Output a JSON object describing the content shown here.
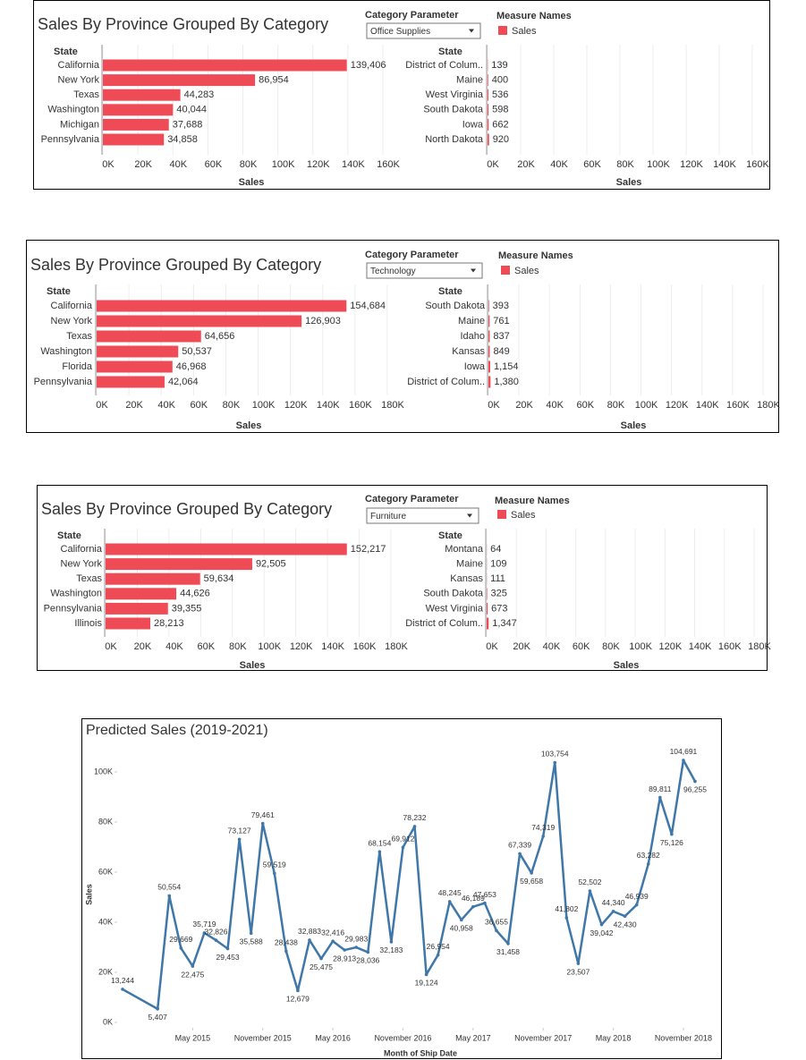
{
  "chart_data": [
    {
      "type": "bar",
      "orientation": "horizontal",
      "title": "Sales By Province Grouped By Category",
      "parameter_label": "Category Parameter",
      "parameter_value": "Office Supplies",
      "legend_title": "Measure Names",
      "category_label": "State",
      "xlabel": "Sales",
      "grid": true,
      "categories": [
        "California",
        "New York",
        "Texas",
        "Washington",
        "Michigan",
        "Pennsylvania"
      ],
      "series": [
        {
          "name": "Sales",
          "color": "#ef4b57",
          "values": [
            139406,
            86954,
            44283,
            40044,
            37688,
            34858
          ],
          "value_labels": [
            "139,406",
            "86,954",
            "44,283",
            "40,044",
            "37,688",
            "34,858"
          ]
        }
      ],
      "xlim": [
        0,
        160000
      ],
      "xticks": [
        {
          "value": 0,
          "label": "0K"
        },
        {
          "value": 20000,
          "label": "20K"
        },
        {
          "value": 40000,
          "label": "40K"
        },
        {
          "value": 60000,
          "label": "60K"
        },
        {
          "value": 80000,
          "label": "80K"
        },
        {
          "value": 100000,
          "label": "100K"
        },
        {
          "value": 120000,
          "label": "120K"
        },
        {
          "value": 140000,
          "label": "140K"
        },
        {
          "value": 160000,
          "label": "160K"
        }
      ]
    },
    {
      "type": "bar",
      "orientation": "horizontal",
      "category_label": "State",
      "xlabel": "Sales",
      "grid": true,
      "categories": [
        "District of Colum..",
        "Maine",
        "West Virginia",
        "South Dakota",
        "Iowa",
        "North Dakota"
      ],
      "series": [
        {
          "color": "#ef4b57",
          "values": [
            139,
            400,
            536,
            598,
            662,
            920
          ],
          "value_labels": [
            "139",
            "400",
            "536",
            "598",
            "662",
            "920"
          ]
        }
      ],
      "xlim": [
        0,
        160000
      ],
      "xticks": [
        {
          "value": 0,
          "label": "0K"
        },
        {
          "value": 20000,
          "label": "20K"
        },
        {
          "value": 40000,
          "label": "40K"
        },
        {
          "value": 60000,
          "label": "60K"
        },
        {
          "value": 80000,
          "label": "80K"
        },
        {
          "value": 100000,
          "label": "100K"
        },
        {
          "value": 120000,
          "label": "120K"
        },
        {
          "value": 140000,
          "label": "140K"
        },
        {
          "value": 160000,
          "label": "160K"
        }
      ]
    },
    {
      "type": "bar",
      "orientation": "horizontal",
      "title": "Sales By Province Grouped By Category",
      "parameter_label": "Category Parameter",
      "parameter_value": "Technology",
      "legend_title": "Measure Names",
      "category_label": "State",
      "xlabel": "Sales",
      "grid": true,
      "categories": [
        "California",
        "New York",
        "Texas",
        "Washington",
        "Florida",
        "Pennsylvania"
      ],
      "series": [
        {
          "name": "Sales",
          "color": "#ef4b57",
          "values": [
            154684,
            126903,
            64656,
            50537,
            46968,
            42064
          ],
          "value_labels": [
            "154,684",
            "126,903",
            "64,656",
            "50,537",
            "46,968",
            "42,064"
          ]
        }
      ],
      "xlim": [
        0,
        180000
      ],
      "xticks": [
        {
          "value": 0,
          "label": "0K"
        },
        {
          "value": 20000,
          "label": "20K"
        },
        {
          "value": 40000,
          "label": "40K"
        },
        {
          "value": 60000,
          "label": "60K"
        },
        {
          "value": 80000,
          "label": "80K"
        },
        {
          "value": 100000,
          "label": "100K"
        },
        {
          "value": 120000,
          "label": "120K"
        },
        {
          "value": 140000,
          "label": "140K"
        },
        {
          "value": 160000,
          "label": "160K"
        },
        {
          "value": 180000,
          "label": "180K"
        }
      ]
    },
    {
      "type": "bar",
      "orientation": "horizontal",
      "category_label": "State",
      "xlabel": "Sales",
      "grid": true,
      "categories": [
        "South Dakota",
        "Maine",
        "Idaho",
        "Kansas",
        "Iowa",
        "District of Colum.."
      ],
      "series": [
        {
          "color": "#ef4b57",
          "values": [
            393,
            761,
            837,
            849,
            1154,
            1380
          ],
          "value_labels": [
            "393",
            "761",
            "837",
            "849",
            "1,154",
            "1,380"
          ]
        }
      ],
      "xlim": [
        0,
        180000
      ],
      "xticks": [
        {
          "value": 0,
          "label": "0K"
        },
        {
          "value": 20000,
          "label": "20K"
        },
        {
          "value": 40000,
          "label": "40K"
        },
        {
          "value": 60000,
          "label": "60K"
        },
        {
          "value": 80000,
          "label": "80K"
        },
        {
          "value": 100000,
          "label": "100K"
        },
        {
          "value": 120000,
          "label": "120K"
        },
        {
          "value": 140000,
          "label": "140K"
        },
        {
          "value": 160000,
          "label": "160K"
        },
        {
          "value": 180000,
          "label": "180K"
        }
      ]
    },
    {
      "type": "bar",
      "orientation": "horizontal",
      "title": "Sales By Province Grouped By Category",
      "parameter_label": "Category Parameter",
      "parameter_value": "Furniture",
      "legend_title": "Measure Names",
      "category_label": "State",
      "xlabel": "Sales",
      "grid": true,
      "categories": [
        "California",
        "New York",
        "Texas",
        "Washington",
        "Pennsylvania",
        "Illinois"
      ],
      "series": [
        {
          "name": "Sales",
          "color": "#ef4b57",
          "values": [
            152217,
            92505,
            59634,
            44626,
            39355,
            28213
          ],
          "value_labels": [
            "152,217",
            "92,505",
            "59,634",
            "44,626",
            "39,355",
            "28,213"
          ]
        }
      ],
      "xlim": [
        0,
        180000
      ],
      "xticks": [
        {
          "value": 0,
          "label": "0K"
        },
        {
          "value": 20000,
          "label": "20K"
        },
        {
          "value": 40000,
          "label": "40K"
        },
        {
          "value": 60000,
          "label": "60K"
        },
        {
          "value": 80000,
          "label": "80K"
        },
        {
          "value": 100000,
          "label": "100K"
        },
        {
          "value": 120000,
          "label": "120K"
        },
        {
          "value": 140000,
          "label": "140K"
        },
        {
          "value": 160000,
          "label": "160K"
        },
        {
          "value": 180000,
          "label": "180K"
        }
      ]
    },
    {
      "type": "bar",
      "orientation": "horizontal",
      "category_label": "State",
      "xlabel": "Sales",
      "grid": true,
      "categories": [
        "Montana",
        "Maine",
        "Kansas",
        "South Dakota",
        "West Virginia",
        "District of Colum.."
      ],
      "series": [
        {
          "color": "#ef4b57",
          "values": [
            64,
            109,
            111,
            325,
            673,
            1347
          ],
          "value_labels": [
            "64",
            "109",
            "111",
            "325",
            "673",
            "1,347"
          ]
        }
      ],
      "xlim": [
        0,
        180000
      ],
      "xticks": [
        {
          "value": 0,
          "label": "0K"
        },
        {
          "value": 20000,
          "label": "20K"
        },
        {
          "value": 40000,
          "label": "40K"
        },
        {
          "value": 60000,
          "label": "60K"
        },
        {
          "value": 80000,
          "label": "80K"
        },
        {
          "value": 100000,
          "label": "100K"
        },
        {
          "value": 120000,
          "label": "120K"
        },
        {
          "value": 140000,
          "label": "140K"
        },
        {
          "value": 160000,
          "label": "160K"
        },
        {
          "value": 180000,
          "label": "180K"
        }
      ]
    },
    {
      "type": "line",
      "title": "Predicted Sales (2019-2021)",
      "xlabel": "Month of Ship Date",
      "ylabel": "Sales",
      "color": "#3f77a9",
      "x": [
        "2014-11",
        "2015-02",
        "2015-03",
        "2015-04",
        "2015-05",
        "2015-06",
        "2015-07",
        "2015-08",
        "2015-09",
        "2015-10",
        "2015-11",
        "2015-12",
        "2016-01",
        "2016-02",
        "2016-03",
        "2016-04",
        "2016-05",
        "2016-06",
        "2016-07",
        "2016-08",
        "2016-09",
        "2016-10",
        "2016-11",
        "2016-12",
        "2017-01",
        "2017-02",
        "2017-03",
        "2017-04",
        "2017-05",
        "2017-06",
        "2017-07",
        "2017-08",
        "2017-09",
        "2017-10",
        "2017-11",
        "2017-12",
        "2018-01",
        "2018-02",
        "2018-03",
        "2018-04",
        "2018-05",
        "2018-06",
        "2018-07",
        "2018-08",
        "2018-09",
        "2018-10",
        "2018-11",
        "2018-12"
      ],
      "values": [
        13244,
        5407,
        50554,
        29669,
        22475,
        35719,
        32826,
        29453,
        73127,
        35588,
        79461,
        59519,
        28438,
        12679,
        32883,
        25475,
        32416,
        28913,
        29983,
        28036,
        68154,
        32183,
        69912,
        78232,
        19124,
        26954,
        48245,
        40958,
        46189,
        47653,
        36655,
        31458,
        67339,
        59658,
        74319,
        103754,
        41802,
        23507,
        52502,
        39042,
        44340,
        42430,
        46939,
        63282,
        89811,
        75126,
        104691,
        96255
      ],
      "value_labels": [
        "13,244",
        "5,407",
        "50,554",
        "29,669",
        "22,475",
        "35,719",
        "32,826",
        "29,453",
        "73,127",
        "35,588",
        "79,461",
        "59,519",
        "28,438",
        "12,679",
        "32,883",
        "25,475",
        "32,416",
        "28,913",
        "29,983",
        "28,036",
        "68,154",
        "32,183",
        "69,912",
        "78,232",
        "19,124",
        "26,954",
        "48,245",
        "40,958",
        "46,189",
        "47,653",
        "36,655",
        "31,458",
        "67,339",
        "59,658",
        "74,319",
        "103,754",
        "41,802",
        "23,507",
        "52,502",
        "39,042",
        "44,340",
        "42,430",
        "46,939",
        "63,282",
        "89,811",
        "75,126",
        "104,691",
        "96,255"
      ],
      "xlim": [
        "2014-11",
        "2018-12"
      ],
      "xticks": [
        {
          "value": "2015-05",
          "label": "May 2015"
        },
        {
          "value": "2015-11",
          "label": "November 2015"
        },
        {
          "value": "2016-05",
          "label": "May 2016"
        },
        {
          "value": "2016-11",
          "label": "November 2016"
        },
        {
          "value": "2017-05",
          "label": "May 2017"
        },
        {
          "value": "2017-11",
          "label": "November 2017"
        },
        {
          "value": "2018-05",
          "label": "May 2018"
        },
        {
          "value": "2018-11",
          "label": "November 2018"
        }
      ],
      "ylim": [
        0,
        110000
      ],
      "yticks": [
        {
          "value": 0,
          "label": "0K"
        },
        {
          "value": 20000,
          "label": "20K"
        },
        {
          "value": 40000,
          "label": "40K"
        },
        {
          "value": 60000,
          "label": "60K"
        },
        {
          "value": 80000,
          "label": "80K"
        },
        {
          "value": 100000,
          "label": "100K"
        }
      ]
    }
  ]
}
